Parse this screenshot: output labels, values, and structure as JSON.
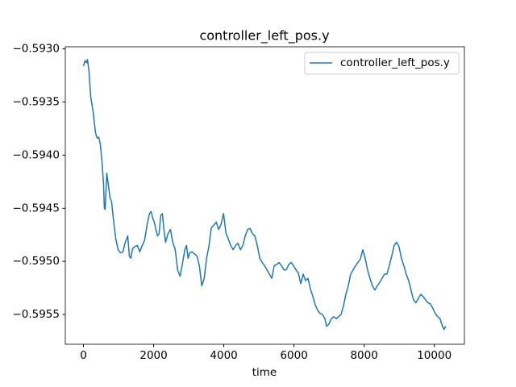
{
  "chart_data": {
    "type": "line",
    "title": "controller_left_pos.y",
    "xlabel": "time",
    "x": [
      0,
      46,
      92,
      115,
      161,
      206,
      275,
      344,
      390,
      436,
      482,
      528,
      574,
      596,
      619,
      665,
      711,
      757,
      803,
      849,
      918,
      986,
      1055,
      1124,
      1193,
      1262,
      1308,
      1353,
      1399,
      1468,
      1537,
      1606,
      1675,
      1743,
      1812,
      1881,
      1927,
      1973,
      2019,
      2065,
      2110,
      2156,
      2202,
      2248,
      2294,
      2340,
      2409,
      2478,
      2546,
      2615,
      2684,
      2753,
      2822,
      2890,
      2936,
      2982,
      3028,
      3097,
      3166,
      3235,
      3303,
      3372,
      3441,
      3510,
      3579,
      3647,
      3716,
      3785,
      3854,
      3923,
      3992,
      4060,
      4129,
      4198,
      4267,
      4336,
      4404,
      4473,
      4542,
      4611,
      4680,
      4749,
      4817,
      4886,
      4955,
      5024,
      5093,
      5161,
      5230,
      5299,
      5368,
      5437,
      5506,
      5574,
      5643,
      5712,
      5781,
      5850,
      5918,
      5987,
      6056,
      6125,
      6194,
      6263,
      6331,
      6400,
      6469,
      6538,
      6607,
      6675,
      6744,
      6813,
      6882,
      6928,
      6997,
      7066,
      7134,
      7203,
      7272,
      7341,
      7410,
      7478,
      7547,
      7616,
      7685,
      7754,
      7822,
      7891,
      7960,
      8029,
      8098,
      8166,
      8235,
      8304,
      8373,
      8442,
      8511,
      8579,
      8648,
      8717,
      8786,
      8855,
      8923,
      8992,
      9061,
      9130,
      9199,
      9268,
      9336,
      9405,
      9474,
      9543,
      9612,
      9680,
      9749,
      9818,
      9887,
      9956,
      10025,
      10094,
      10162,
      10231,
      10277,
      10323
    ],
    "series": [
      {
        "name": "controller_left_pos.y",
        "color": "#1f77b4",
        "values": [
          -0.59316,
          -0.59311,
          -0.59313,
          -0.5931,
          -0.59322,
          -0.59345,
          -0.59359,
          -0.59379,
          -0.59384,
          -0.59383,
          -0.5939,
          -0.59406,
          -0.59428,
          -0.5945,
          -0.59451,
          -0.59417,
          -0.59428,
          -0.5944,
          -0.59444,
          -0.59459,
          -0.59478,
          -0.59489,
          -0.59492,
          -0.59491,
          -0.59482,
          -0.59476,
          -0.59495,
          -0.59497,
          -0.59488,
          -0.59486,
          -0.59485,
          -0.59491,
          -0.59485,
          -0.5948,
          -0.59466,
          -0.59455,
          -0.59453,
          -0.59459,
          -0.59463,
          -0.5947,
          -0.59476,
          -0.59474,
          -0.59457,
          -0.59455,
          -0.5947,
          -0.59482,
          -0.59474,
          -0.5947,
          -0.59482,
          -0.59489,
          -0.59508,
          -0.59514,
          -0.59502,
          -0.59489,
          -0.59485,
          -0.59497,
          -0.59492,
          -0.59491,
          -0.59493,
          -0.59495,
          -0.59504,
          -0.59523,
          -0.59516,
          -0.59497,
          -0.59485,
          -0.59468,
          -0.59466,
          -0.59463,
          -0.5947,
          -0.59465,
          -0.59455,
          -0.59473,
          -0.59479,
          -0.59485,
          -0.59489,
          -0.59485,
          -0.59483,
          -0.59489,
          -0.59485,
          -0.59476,
          -0.5947,
          -0.59469,
          -0.59474,
          -0.59476,
          -0.59485,
          -0.59497,
          -0.59501,
          -0.59504,
          -0.59508,
          -0.59512,
          -0.59516,
          -0.59504,
          -0.59503,
          -0.59501,
          -0.59504,
          -0.59508,
          -0.59508,
          -0.59503,
          -0.59501,
          -0.59504,
          -0.59508,
          -0.59511,
          -0.59521,
          -0.59512,
          -0.59518,
          -0.59516,
          -0.59526,
          -0.59533,
          -0.59541,
          -0.59546,
          -0.59549,
          -0.5955,
          -0.59554,
          -0.59561,
          -0.59559,
          -0.59554,
          -0.59552,
          -0.59554,
          -0.59552,
          -0.5955,
          -0.59542,
          -0.59531,
          -0.59523,
          -0.59512,
          -0.59508,
          -0.59504,
          -0.59501,
          -0.59498,
          -0.59489,
          -0.59497,
          -0.59508,
          -0.59516,
          -0.59523,
          -0.59527,
          -0.59523,
          -0.5952,
          -0.59516,
          -0.59512,
          -0.59512,
          -0.59504,
          -0.59495,
          -0.59485,
          -0.59482,
          -0.59486,
          -0.59497,
          -0.59504,
          -0.59512,
          -0.59518,
          -0.59527,
          -0.59536,
          -0.59539,
          -0.59535,
          -0.59531,
          -0.59533,
          -0.59536,
          -0.59539,
          -0.5954,
          -0.59544,
          -0.59549,
          -0.59552,
          -0.59554,
          -0.59561,
          -0.59564,
          -0.59561
        ]
      }
    ],
    "xlim": [
      -517,
      10857
    ],
    "ylim": [
      -0.59578,
      -0.59298
    ],
    "xticks": [
      0,
      2000,
      4000,
      6000,
      8000,
      10000
    ],
    "yticks": [
      {
        "value": -0.5955,
        "label": "−0.5955"
      },
      {
        "value": -0.595,
        "label": "−0.5950"
      },
      {
        "value": -0.5945,
        "label": "−0.5945"
      },
      {
        "value": -0.594,
        "label": "−0.5940"
      },
      {
        "value": -0.5935,
        "label": "−0.5935"
      },
      {
        "value": -0.593,
        "label": "−0.5930"
      }
    ],
    "legend": "upper right"
  }
}
